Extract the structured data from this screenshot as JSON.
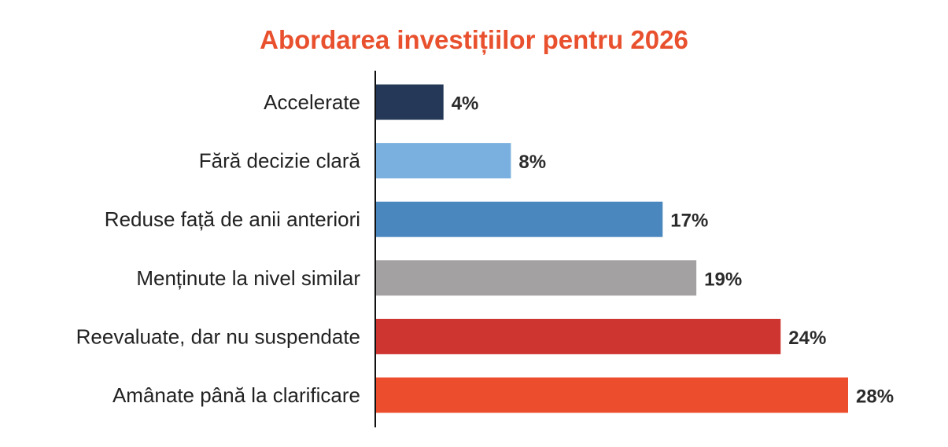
{
  "chart_data": {
    "type": "bar",
    "orientation": "horizontal",
    "title": "Abordarea investițiilor pentru 2026",
    "title_color": "#e8502e",
    "categories": [
      "Accelerate",
      "Fără decizie clară",
      "Reduse față de anii anteriori",
      "Menținute la nivel similar",
      "Reevaluate, dar nu suspendate",
      "Amânate până la clarificare"
    ],
    "values": [
      4,
      8,
      17,
      19,
      24,
      28
    ],
    "value_labels": [
      "4%",
      "8%",
      "17%",
      "19%",
      "24%",
      "28%"
    ],
    "colors": [
      "#253858",
      "#7ab0df",
      "#4a87be",
      "#a3a1a2",
      "#ce3530",
      "#ec4e2d"
    ],
    "unit": "%",
    "xlim": [
      0,
      28
    ],
    "grid": false,
    "legend": "none"
  }
}
